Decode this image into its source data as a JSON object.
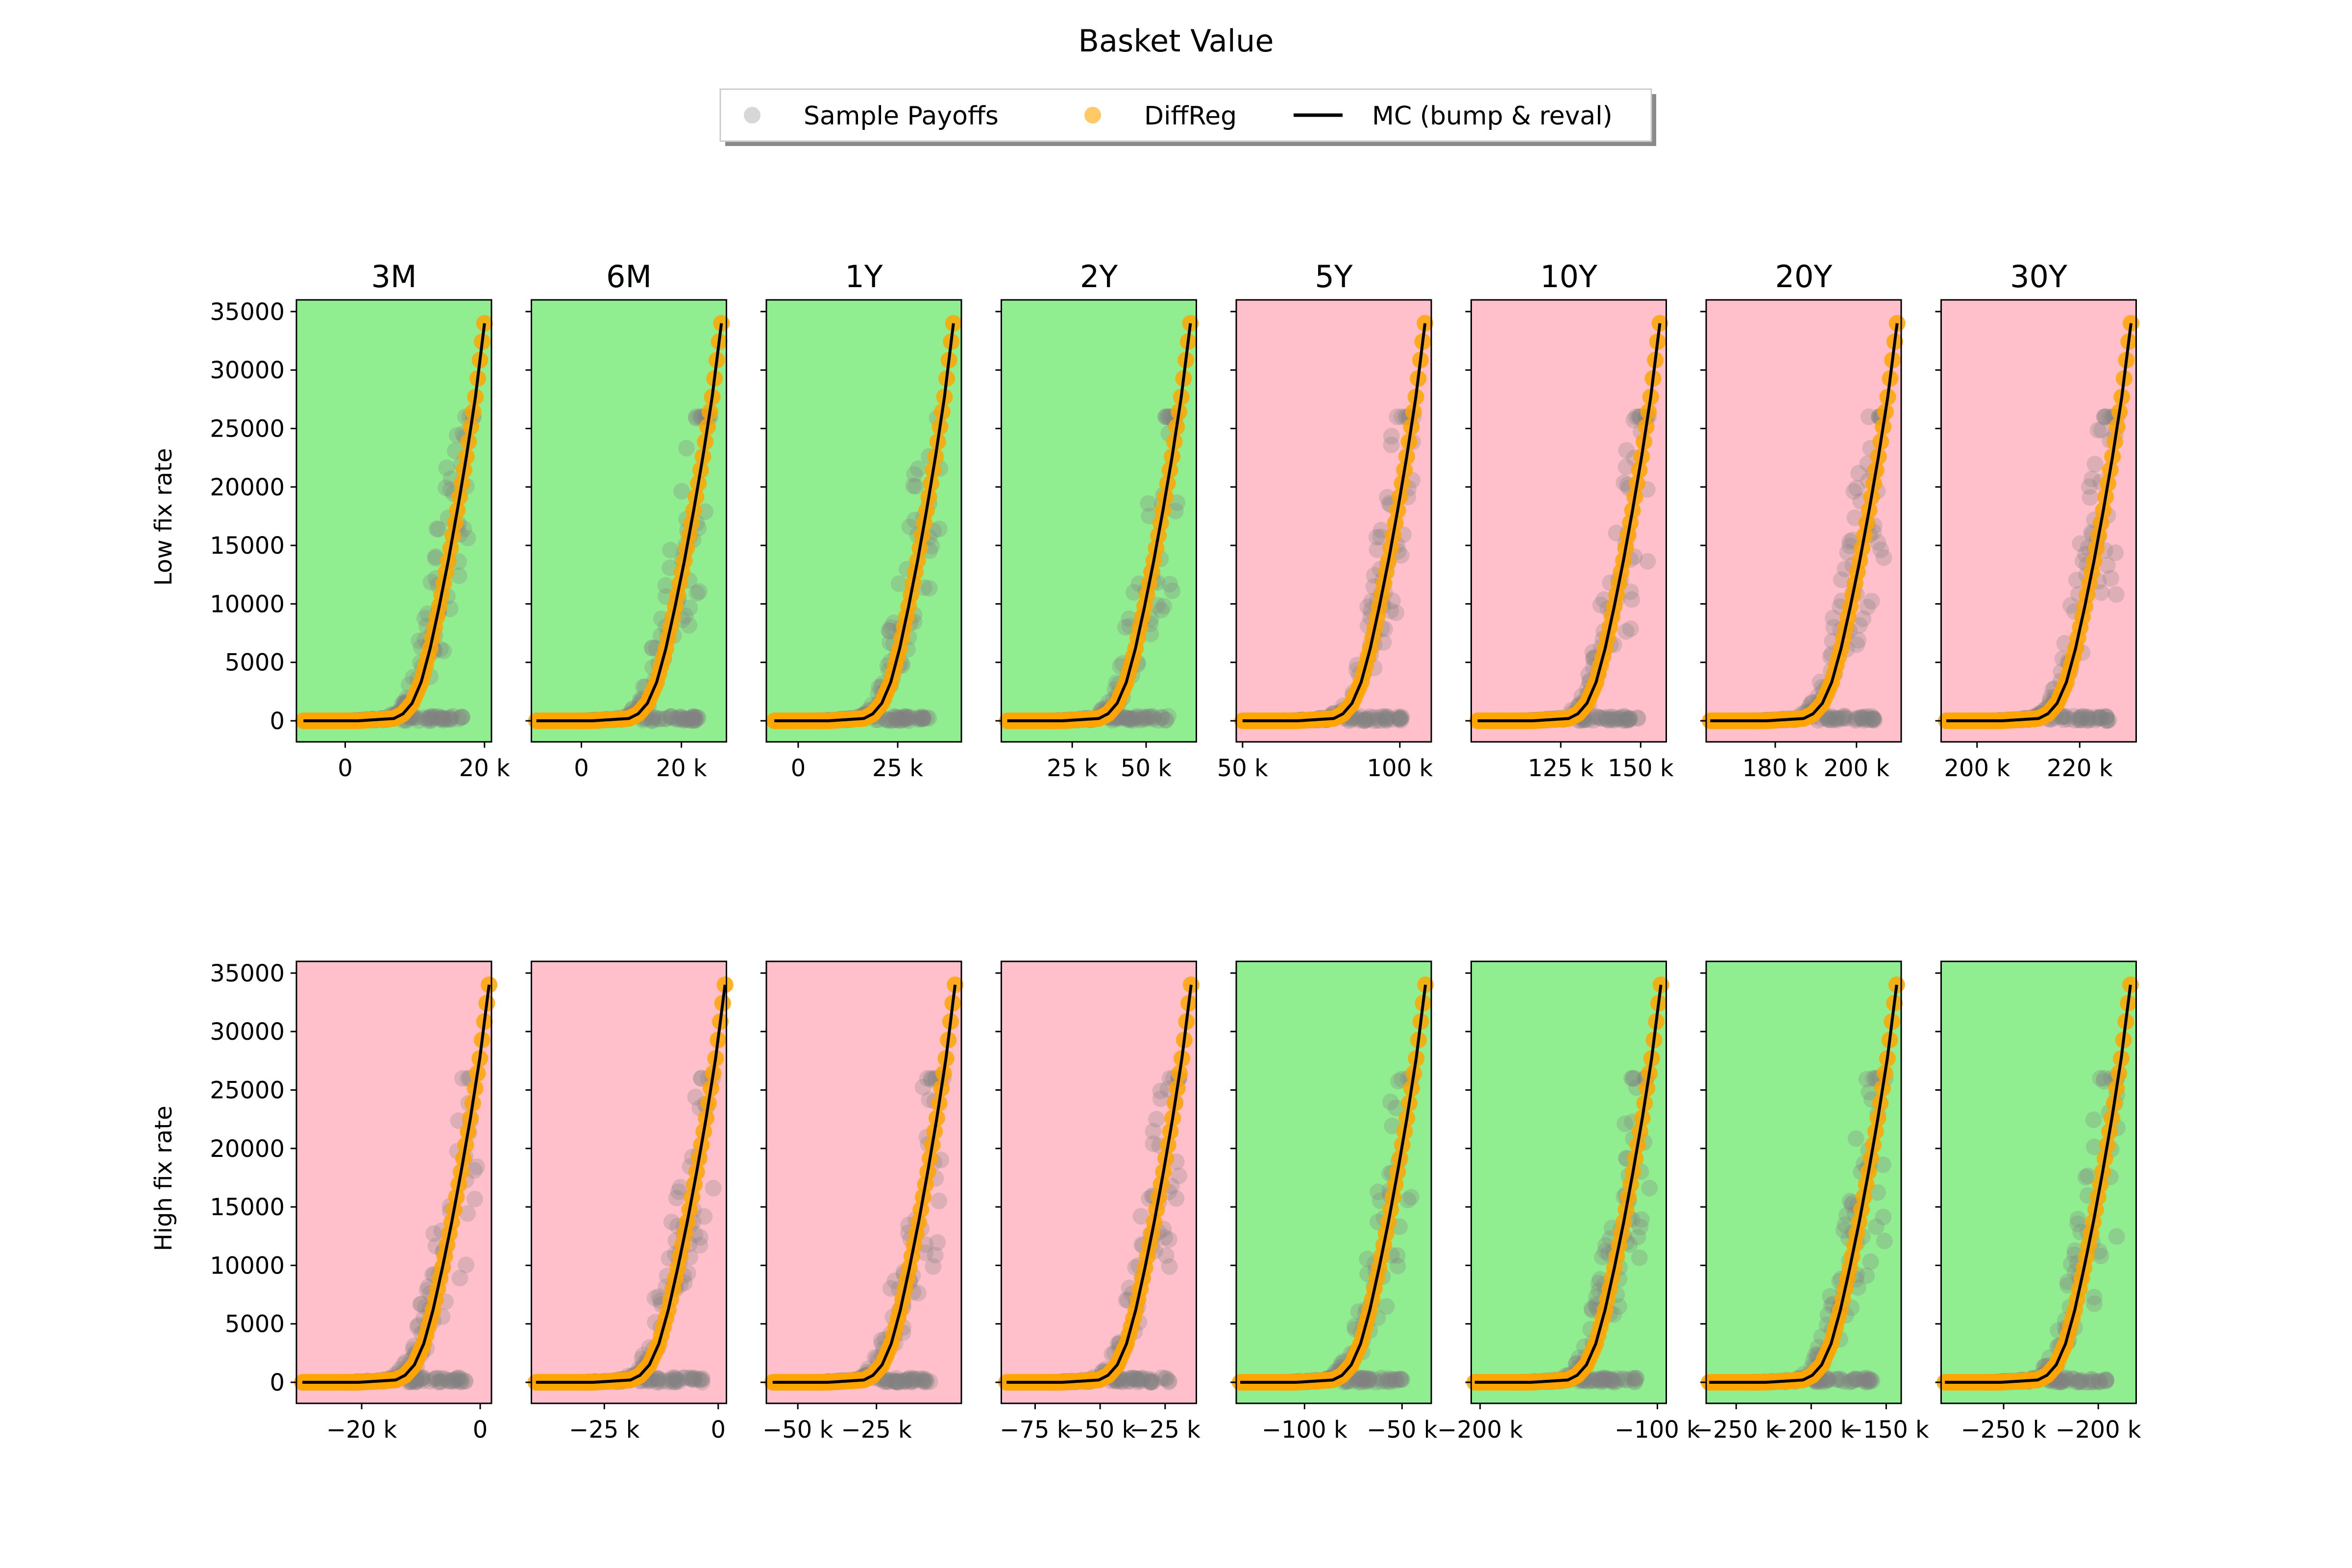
{
  "figure": {
    "title": "Basket Value",
    "legend": {
      "placement": "top-center",
      "items": [
        {
          "label": "Sample Payoffs",
          "kind": "marker",
          "color": "#bdbdbd"
        },
        {
          "label": "DiffReg",
          "kind": "marker",
          "color": "#ffa500"
        },
        {
          "label": "MC (bump & reval)",
          "kind": "line",
          "color": "#000000"
        }
      ]
    },
    "colors": {
      "good": "#90ee90",
      "bad": "#ffc0cb",
      "samples": "#808080",
      "diffreg": "#ffa500",
      "mc": "#000000"
    }
  },
  "chart_data": {
    "type": "scatter",
    "title": "Basket Value",
    "columns": [
      "3M",
      "6M",
      "1Y",
      "2Y",
      "5Y",
      "10Y",
      "20Y",
      "30Y"
    ],
    "rows": [
      "Low fix rate",
      "High fix rate"
    ],
    "ylim": [
      -1800,
      36000
    ],
    "yticks": [
      0,
      5000,
      10000,
      15000,
      20000,
      25000,
      30000,
      35000
    ],
    "ytick_labels": [
      "0",
      "5000",
      "10000",
      "15000",
      "20000",
      "25000",
      "30000",
      "35000"
    ],
    "curve_shape": {
      "y_max": 34000,
      "x_frac": [
        0,
        0.3,
        0.5,
        0.55,
        0.6,
        0.65,
        0.7,
        0.75,
        0.8,
        0.85,
        0.9,
        0.95,
        1.0
      ],
      "y_values": [
        0,
        0,
        200,
        600,
        1500,
        3300,
        6200,
        9800,
        13700,
        18000,
        22600,
        27700,
        34000
      ]
    },
    "panels": [
      {
        "row": "Low fix rate",
        "column": "3M",
        "background": "good",
        "xlim": [
          -7000,
          21000
        ],
        "x_range": [
          -6000,
          20000
        ],
        "xticks": [
          0,
          20000
        ],
        "xtick_labels": [
          "0",
          "20 k"
        ]
      },
      {
        "row": "Low fix rate",
        "column": "6M",
        "background": "good",
        "xlim": [
          -10000,
          29000
        ],
        "x_range": [
          -9000,
          28000
        ],
        "xticks": [
          0,
          20000
        ],
        "xtick_labels": [
          "0",
          "20 k"
        ]
      },
      {
        "row": "Low fix rate",
        "column": "1Y",
        "background": "good",
        "xlim": [
          -8000,
          41000
        ],
        "x_range": [
          -6000,
          39000
        ],
        "xticks": [
          0,
          25000
        ],
        "xtick_labels": [
          "0",
          "25 k"
        ]
      },
      {
        "row": "Low fix rate",
        "column": "2Y",
        "background": "good",
        "xlim": [
          1000,
          67000
        ],
        "x_range": [
          3000,
          65000
        ],
        "xticks": [
          25000,
          50000
        ],
        "xtick_labels": [
          "25 k",
          "50 k"
        ]
      },
      {
        "row": "Low fix rate",
        "column": "5Y",
        "background": "bad",
        "xlim": [
          48000,
          110000
        ],
        "x_range": [
          50000,
          108000
        ],
        "xticks": [
          50000,
          100000
        ],
        "xtick_labels": [
          "50 k",
          "100 k"
        ]
      },
      {
        "row": "Low fix rate",
        "column": "10Y",
        "background": "bad",
        "xlim": [
          97000,
          158000
        ],
        "x_range": [
          99000,
          156000
        ],
        "xticks": [
          125000,
          150000
        ],
        "xtick_labels": [
          "125 k",
          "150 k"
        ]
      },
      {
        "row": "Low fix rate",
        "column": "20Y",
        "background": "bad",
        "xlim": [
          163000,
          211000
        ],
        "x_range": [
          164000,
          210000
        ],
        "xticks": [
          180000,
          200000
        ],
        "xtick_labels": [
          "180 k",
          "200 k"
        ]
      },
      {
        "row": "Low fix rate",
        "column": "30Y",
        "background": "bad",
        "xlim": [
          193000,
          231000
        ],
        "x_range": [
          194000,
          230000
        ],
        "xticks": [
          200000,
          220000
        ],
        "xtick_labels": [
          "200 k",
          "220 k"
        ]
      },
      {
        "row": "High fix rate",
        "column": "3M",
        "background": "bad",
        "xlim": [
          -31000,
          1900
        ],
        "x_range": [
          -30000,
          1500
        ],
        "xticks": [
          -20000,
          0
        ],
        "xtick_labels": [
          "−20 k",
          "0"
        ]
      },
      {
        "row": "High fix rate",
        "column": "6M",
        "background": "bad",
        "xlim": [
          -41000,
          1800
        ],
        "x_range": [
          -40000,
          1500
        ],
        "xticks": [
          -25000,
          0
        ],
        "xtick_labels": [
          "−25 k",
          "0"
        ]
      },
      {
        "row": "High fix rate",
        "column": "1Y",
        "background": "bad",
        "xlim": [
          -60000,
          2000
        ],
        "x_range": [
          -58000,
          0
        ],
        "xticks": [
          -50000,
          -25000
        ],
        "xtick_labels": [
          "−50 k",
          "−25 k"
        ]
      },
      {
        "row": "High fix rate",
        "column": "2Y",
        "background": "bad",
        "xlim": [
          -88000,
          -13000
        ],
        "x_range": [
          -86000,
          -15000
        ],
        "xticks": [
          -75000,
          -50000,
          -25000
        ],
        "xtick_labels": [
          "−75 k",
          "−50 k",
          "−25 k"
        ]
      },
      {
        "row": "High fix rate",
        "column": "5Y",
        "background": "good",
        "xlim": [
          -135000,
          -35000
        ],
        "x_range": [
          -133000,
          -38000
        ],
        "xticks": [
          -100000,
          -50000
        ],
        "xtick_labels": [
          "−100 k",
          "−50 k"
        ]
      },
      {
        "row": "High fix rate",
        "column": "10Y",
        "background": "good",
        "xlim": [
          -205000,
          -95000
        ],
        "x_range": [
          -203000,
          -98000
        ],
        "xticks": [
          -200000,
          -100000
        ],
        "xtick_labels": [
          "−200 k",
          "−100 k"
        ]
      },
      {
        "row": "High fix rate",
        "column": "20Y",
        "background": "good",
        "xlim": [
          -270000,
          -140000
        ],
        "x_range": [
          -268000,
          -143000
        ],
        "xticks": [
          -250000,
          -200000,
          -150000
        ],
        "xtick_labels": [
          "−250 k",
          "−200 k",
          "−150 k"
        ]
      },
      {
        "row": "High fix rate",
        "column": "30Y",
        "background": "good",
        "xlim": [
          -283000,
          -180000
        ],
        "x_range": [
          -281000,
          -183000
        ],
        "xticks": [
          -250000,
          -200000
        ],
        "xtick_labels": [
          "−250 k",
          "−200 k"
        ]
      }
    ]
  }
}
